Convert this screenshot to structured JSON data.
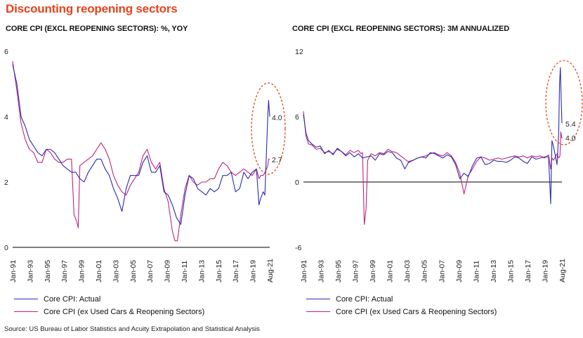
{
  "title": "Discounting reopening sectors",
  "source": "Source: US Bureau of Labor Statistics and Acuity Extrapolation and Statistical Analysis",
  "colors": {
    "title": "#e8431b",
    "actual": "#2b2bb0",
    "ex_used": "#c0237e",
    "highlight": "#e8431b",
    "axis": "#000000"
  },
  "chart_data": [
    {
      "type": "line",
      "title": "CORE CPI (EXCL REOPENING SECTORS): %, YOY",
      "xlabel": "",
      "ylabel": "",
      "ylim": [
        0,
        6
      ],
      "yticks": [
        0,
        2,
        4,
        6
      ],
      "xticks": [
        "Jan-91",
        "Jan-93",
        "Jan-95",
        "Jan-97",
        "Jan-99",
        "Jan-01",
        "Jan-03",
        "Jan-05",
        "Jan-07",
        "Jan-09",
        "Jan-11",
        "Jan-13",
        "Jan-15",
        "Jan-17",
        "Jan-19",
        "Aug-21"
      ],
      "x_range": [
        1991.0,
        2021.58
      ],
      "annotations": [
        "4.0",
        "2.7"
      ],
      "highlight": "dashed ellipse around 2020-2021",
      "series": [
        {
          "name": "Core CPI: Actual",
          "color": "#2b2bb0",
          "x": [
            1991.0,
            1991.5,
            1992.0,
            1992.5,
            1993.0,
            1993.5,
            1994.0,
            1994.5,
            1995.0,
            1995.5,
            1996.0,
            1996.5,
            1997.0,
            1997.5,
            1998.0,
            1998.5,
            1999.0,
            1999.5,
            2000.0,
            2000.5,
            2001.0,
            2001.5,
            2002.0,
            2002.5,
            2003.0,
            2003.5,
            2004.0,
            2004.5,
            2005.0,
            2005.5,
            2006.0,
            2006.5,
            2007.0,
            2007.5,
            2008.0,
            2008.5,
            2009.0,
            2009.5,
            2010.0,
            2010.5,
            2011.0,
            2011.5,
            2012.0,
            2012.5,
            2013.0,
            2013.5,
            2014.0,
            2014.5,
            2015.0,
            2015.5,
            2016.0,
            2016.5,
            2017.0,
            2017.5,
            2018.0,
            2018.5,
            2019.0,
            2019.5,
            2020.0,
            2020.3,
            2020.5,
            2020.8,
            2021.0,
            2021.2,
            2021.35,
            2021.45,
            2021.58
          ],
          "y": [
            5.6,
            5.0,
            4.0,
            3.7,
            3.3,
            3.1,
            2.9,
            2.8,
            3.0,
            3.0,
            2.9,
            2.7,
            2.5,
            2.4,
            2.3,
            2.3,
            2.1,
            2.0,
            2.3,
            2.5,
            2.7,
            2.7,
            2.4,
            2.2,
            1.8,
            1.5,
            1.1,
            1.8,
            2.2,
            2.2,
            2.2,
            2.6,
            2.8,
            2.3,
            2.3,
            2.5,
            1.7,
            1.6,
            1.3,
            0.9,
            0.7,
            1.6,
            2.2,
            2.1,
            1.8,
            1.7,
            1.6,
            1.8,
            1.7,
            1.8,
            2.2,
            2.2,
            2.3,
            1.7,
            1.8,
            2.3,
            2.1,
            2.3,
            2.4,
            1.3,
            1.5,
            1.7,
            1.6,
            3.0,
            4.0,
            4.5,
            4.0
          ]
        },
        {
          "name": "Core CPI (ex Used Cars & Reopening Sectors)",
          "color": "#c0237e",
          "x": [
            1991.0,
            1991.5,
            1992.0,
            1992.5,
            1993.0,
            1993.5,
            1994.0,
            1994.5,
            1995.0,
            1995.5,
            1996.0,
            1996.5,
            1997.0,
            1997.5,
            1998.0,
            1998.3,
            1998.6,
            1998.8,
            1999.0,
            1999.5,
            2000.0,
            2000.5,
            2001.0,
            2001.5,
            2002.0,
            2002.5,
            2003.0,
            2003.5,
            2004.0,
            2004.5,
            2005.0,
            2005.5,
            2006.0,
            2006.5,
            2007.0,
            2007.5,
            2008.0,
            2008.5,
            2009.0,
            2009.5,
            2010.0,
            2010.3,
            2010.6,
            2011.0,
            2011.5,
            2012.0,
            2012.5,
            2013.0,
            2013.5,
            2014.0,
            2014.5,
            2015.0,
            2015.5,
            2016.0,
            2016.5,
            2017.0,
            2017.5,
            2018.0,
            2018.5,
            2019.0,
            2019.5,
            2020.0,
            2020.3,
            2020.5,
            2020.8,
            2021.0,
            2021.2,
            2021.35,
            2021.45,
            2021.58
          ],
          "y": [
            5.7,
            4.8,
            3.8,
            3.3,
            3.0,
            2.9,
            2.6,
            2.6,
            3.0,
            2.9,
            2.7,
            2.6,
            2.6,
            2.7,
            2.7,
            1.0,
            0.8,
            0.6,
            2.5,
            2.6,
            2.7,
            2.8,
            3.0,
            3.2,
            3.0,
            2.7,
            2.2,
            1.9,
            1.7,
            1.6,
            1.9,
            2.1,
            2.3,
            2.8,
            3.0,
            2.6,
            2.4,
            2.6,
            1.8,
            1.4,
            0.5,
            0.2,
            0.2,
            1.0,
            1.8,
            2.2,
            2.0,
            1.9,
            2.0,
            2.0,
            2.1,
            2.1,
            2.4,
            2.6,
            2.5,
            2.3,
            2.2,
            2.3,
            2.4,
            2.3,
            2.2,
            2.4,
            2.1,
            2.2,
            2.2,
            2.3,
            2.4,
            2.5,
            2.7,
            2.7
          ]
        }
      ]
    },
    {
      "type": "line",
      "title": "CORE CPI (EXCL REOPENING SECTORS): 3M ANNUALIZED",
      "xlabel": "",
      "ylabel": "",
      "ylim": [
        -6,
        12
      ],
      "yticks": [
        -6,
        0,
        6,
        12
      ],
      "xticks": [
        "Jan-91",
        "Jan-93",
        "Jan-95",
        "Jan-97",
        "Jan-99",
        "Jan-01",
        "Jan-03",
        "Jan-05",
        "Jan-07",
        "Jan-09",
        "Jan-11",
        "Jan-13",
        "Jan-15",
        "Jan-17",
        "Jan-19",
        "Aug-21"
      ],
      "x_range": [
        1991.0,
        2021.58
      ],
      "annotations": [
        "5.4",
        "4.0"
      ],
      "highlight": "dashed ellipse around 2020-2021",
      "series": [
        {
          "name": "Core CPI: Actual",
          "color": "#2b2bb0",
          "x": [
            1991.0,
            1991.3,
            1991.6,
            1992.0,
            1992.5,
            1993.0,
            1993.5,
            1994.0,
            1994.5,
            1995.0,
            1995.5,
            1996.0,
            1996.5,
            1997.0,
            1997.5,
            1998.0,
            1998.5,
            1999.0,
            1999.5,
            2000.0,
            2000.5,
            2001.0,
            2001.5,
            2002.0,
            2002.5,
            2003.0,
            2003.5,
            2004.0,
            2004.5,
            2005.0,
            2005.5,
            2006.0,
            2006.5,
            2007.0,
            2007.5,
            2008.0,
            2008.5,
            2009.0,
            2009.5,
            2010.0,
            2010.5,
            2011.0,
            2011.5,
            2012.0,
            2012.5,
            2013.0,
            2013.5,
            2014.0,
            2014.5,
            2015.0,
            2015.5,
            2016.0,
            2016.5,
            2017.0,
            2017.5,
            2018.0,
            2018.5,
            2019.0,
            2019.5,
            2020.0,
            2020.25,
            2020.4,
            2020.6,
            2020.8,
            2021.0,
            2021.2,
            2021.3,
            2021.4,
            2021.5,
            2021.58
          ],
          "y": [
            6.2,
            4.5,
            3.8,
            3.5,
            3.2,
            3.3,
            2.6,
            2.9,
            2.5,
            3.1,
            2.8,
            2.4,
            2.7,
            2.3,
            2.6,
            2.2,
            2.3,
            2.4,
            2.0,
            2.6,
            2.5,
            2.8,
            2.7,
            2.2,
            2.0,
            1.2,
            1.9,
            2.0,
            2.2,
            2.3,
            2.2,
            2.7,
            2.6,
            2.4,
            2.2,
            2.5,
            2.3,
            1.6,
            0.3,
            0.8,
            0.5,
            1.5,
            2.2,
            2.3,
            1.6,
            1.7,
            2.0,
            1.9,
            1.9,
            1.8,
            2.0,
            2.3,
            2.2,
            1.9,
            1.7,
            2.3,
            2.1,
            2.2,
            2.3,
            2.3,
            -2.0,
            3.8,
            3.2,
            2.4,
            1.6,
            4.5,
            9.0,
            10.5,
            7.5,
            5.4
          ]
        },
        {
          "name": "Core CPI (ex Used Cars & Reopening Sectors)",
          "color": "#c0237e",
          "x": [
            1991.0,
            1991.3,
            1991.6,
            1992.0,
            1992.5,
            1993.0,
            1993.5,
            1994.0,
            1994.5,
            1995.0,
            1995.5,
            1996.0,
            1996.5,
            1997.0,
            1997.5,
            1997.8,
            1998.0,
            1998.2,
            1998.4,
            1998.6,
            1999.0,
            1999.5,
            2000.0,
            2000.5,
            2001.0,
            2001.5,
            2002.0,
            2002.5,
            2003.0,
            2003.5,
            2004.0,
            2004.5,
            2005.0,
            2005.5,
            2006.0,
            2006.5,
            2007.0,
            2007.5,
            2008.0,
            2008.5,
            2009.0,
            2009.5,
            2010.0,
            2010.5,
            2011.0,
            2011.5,
            2012.0,
            2012.5,
            2013.0,
            2013.5,
            2014.0,
            2014.5,
            2015.0,
            2015.5,
            2016.0,
            2016.5,
            2017.0,
            2017.5,
            2018.0,
            2018.5,
            2019.0,
            2019.5,
            2020.0,
            2020.25,
            2020.4,
            2020.6,
            2020.8,
            2021.0,
            2021.2,
            2021.35,
            2021.45,
            2021.58
          ],
          "y": [
            6.5,
            4.2,
            3.5,
            3.4,
            3.0,
            3.1,
            2.7,
            2.8,
            2.6,
            3.0,
            2.8,
            2.5,
            2.9,
            2.7,
            2.9,
            2.6,
            2.7,
            -3.9,
            -2.5,
            2.0,
            2.6,
            2.4,
            2.7,
            2.6,
            3.0,
            2.8,
            2.7,
            2.4,
            2.1,
            1.8,
            2.0,
            2.2,
            2.3,
            2.4,
            2.6,
            2.7,
            2.5,
            2.4,
            2.7,
            2.4,
            1.8,
            0.8,
            -1.1,
            0.6,
            1.2,
            1.9,
            2.3,
            2.2,
            2.0,
            2.1,
            2.2,
            2.1,
            2.2,
            2.3,
            2.4,
            2.3,
            2.4,
            2.2,
            2.4,
            2.3,
            2.4,
            2.2,
            2.5,
            1.2,
            2.2,
            2.0,
            2.3,
            2.6,
            2.2,
            2.4,
            4.6,
            4.0
          ]
        }
      ]
    }
  ],
  "legend": {
    "left": [
      {
        "label": "Core CPI: Actual"
      },
      {
        "label": "Core CPI (ex Used Cars & Reopening Sectors)"
      }
    ],
    "right": [
      {
        "label": "Core CPI: Actual"
      },
      {
        "label": "Core CPI (ex Used Cars & Reopening Sectors)"
      }
    ]
  }
}
